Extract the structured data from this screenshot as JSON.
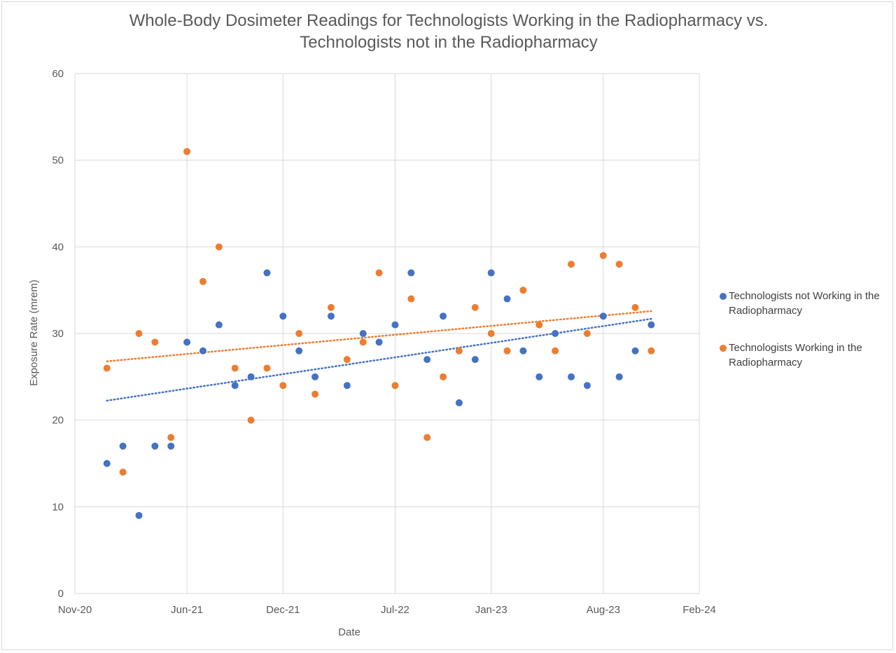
{
  "chart_data": {
    "type": "scatter",
    "title_lines": [
      "Whole-Body Dosimeter Readings for Technologists Working in the Radiopharmacy vs.",
      "Technologists not in the Radiopharmacy"
    ],
    "xlabel": "Date",
    "ylabel": "Exposure Rate (mrem)",
    "ylim": [
      0,
      60
    ],
    "xlim": [
      "2020-11",
      "2024-02"
    ],
    "y_ticks": [
      0,
      10,
      20,
      30,
      40,
      50,
      60
    ],
    "x_ticks": [
      {
        "label": "Nov-20",
        "date": "2020-11"
      },
      {
        "label": "Jun-21",
        "date": "2021-06"
      },
      {
        "label": "Dec-21",
        "date": "2021-12"
      },
      {
        "label": "Jul-22",
        "date": "2022-07"
      },
      {
        "label": "Jan-23",
        "date": "2023-01"
      },
      {
        "label": "Aug-23",
        "date": "2023-08"
      },
      {
        "label": "Feb-24",
        "date": "2024-02"
      }
    ],
    "grid": true,
    "legend_position": "right",
    "x": [
      "2021-01",
      "2021-02",
      "2021-03",
      "2021-04",
      "2021-05",
      "2021-06",
      "2021-07",
      "2021-08",
      "2021-09",
      "2021-10",
      "2021-11",
      "2021-12",
      "2022-01",
      "2022-02",
      "2022-03",
      "2022-04",
      "2022-05",
      "2022-06",
      "2022-07",
      "2022-08",
      "2022-09",
      "2022-10",
      "2022-11",
      "2022-12",
      "2023-01",
      "2023-02",
      "2023-03",
      "2023-04",
      "2023-05",
      "2023-06",
      "2023-07",
      "2023-08",
      "2023-09",
      "2023-10",
      "2023-11"
    ],
    "series": [
      {
        "name": "Technologists not Working in the Radiopharmacy",
        "color": "#4472c4",
        "values": [
          15,
          17,
          9,
          17,
          17,
          29,
          28,
          31,
          24,
          25,
          37,
          32,
          28,
          25,
          32,
          24,
          30,
          29,
          31,
          37,
          27,
          32,
          22,
          27,
          37,
          34,
          28,
          25,
          30,
          25,
          24,
          32,
          25,
          28,
          31
        ],
        "trendline": "linear",
        "trend_style": "dotted"
      },
      {
        "name": "Technologists Working in the Radiopharmacy",
        "color": "#ed7d31",
        "values": [
          26,
          14,
          30,
          29,
          18,
          51,
          36,
          40,
          26,
          20,
          26,
          24,
          30,
          23,
          33,
          27,
          29,
          37,
          24,
          34,
          18,
          25,
          28,
          33,
          30,
          28,
          35,
          31,
          28,
          38,
          30,
          39,
          38,
          33,
          28
        ],
        "trendline": "linear",
        "trend_style": "dotted"
      }
    ]
  },
  "colors": {
    "grid": "#d9d9d9",
    "tick_text": "#595959",
    "title_text": "#595959"
  }
}
